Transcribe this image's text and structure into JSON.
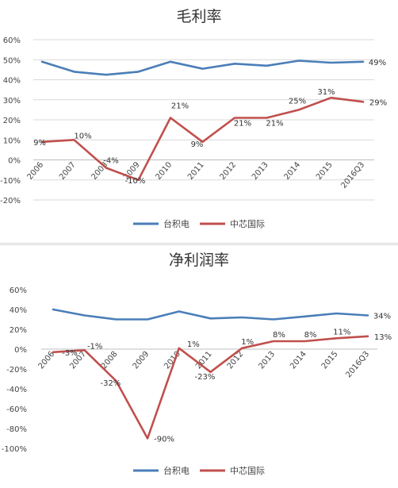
{
  "chart_data": [
    {
      "type": "line",
      "title": "毛利率",
      "categories": [
        "2006",
        "2007",
        "2008",
        "2009",
        "2010",
        "2011",
        "2012",
        "2013",
        "2014",
        "2015",
        "2016Q3"
      ],
      "ylim": [
        -20,
        60
      ],
      "yticks": [
        "60%",
        "50%",
        "40%",
        "30%",
        "20%",
        "10%",
        "0%",
        "-10%",
        "-20%"
      ],
      "ytick_values": [
        60,
        50,
        40,
        30,
        20,
        10,
        0,
        -10,
        -20
      ],
      "grid": true,
      "legend_position": "bottom",
      "series": [
        {
          "name": "台积电",
          "color": "#4a7eb8",
          "values": [
            49,
            44,
            42.5,
            44,
            49,
            45.5,
            48,
            47,
            49.5,
            48.5,
            49
          ],
          "data_labels": [
            "",
            "",
            "",
            "",
            "",
            "",
            "",
            "",
            "",
            "",
            "49%"
          ]
        },
        {
          "name": "中芯国际",
          "color": "#c0504d",
          "values": [
            9,
            10,
            -4,
            -10,
            21,
            9,
            21,
            21,
            25,
            31,
            29
          ],
          "data_labels": [
            "9%",
            "10%",
            "-4%",
            "-10%",
            "21%",
            "9%",
            "21%",
            "21%",
            "25%",
            "31%",
            "29%"
          ]
        }
      ]
    },
    {
      "type": "line",
      "title": "净利润率",
      "categories": [
        "2006",
        "2007",
        "2008",
        "2009",
        "2010",
        "2011",
        "2012",
        "2013",
        "2014",
        "2015",
        "2016Q3"
      ],
      "ylim": [
        -100,
        60
      ],
      "yticks": [
        "60%",
        "40%",
        "20%",
        "0%",
        "-20%",
        "-40%",
        "-60%",
        "-80%",
        "-100%"
      ],
      "ytick_values": [
        60,
        40,
        20,
        0,
        -20,
        -40,
        -60,
        -80,
        -100
      ],
      "grid": false,
      "legend_position": "bottom",
      "series": [
        {
          "name": "台积电",
          "color": "#4a7eb8",
          "values": [
            40,
            34,
            30,
            30,
            38,
            31,
            32,
            30,
            33,
            36,
            34
          ],
          "data_labels": [
            "",
            "",
            "",
            "",
            "",
            "",
            "",
            "",
            "",
            "",
            "34%"
          ]
        },
        {
          "name": "中芯国际",
          "color": "#c0504d",
          "values": [
            -3,
            -1,
            -32,
            -90,
            1,
            -23,
            1,
            8,
            8,
            11,
            13
          ],
          "data_labels": [
            "-3%",
            "-1%",
            "-32%",
            "-90%",
            "1%",
            "-23%",
            "1%",
            "8%",
            "8%",
            "11%",
            "13%"
          ]
        }
      ]
    }
  ]
}
